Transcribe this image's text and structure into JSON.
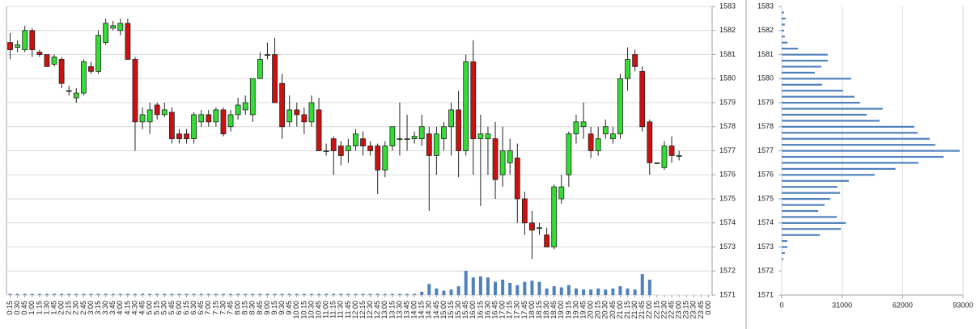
{
  "chart_data": [
    {
      "type": "candlestick",
      "categories": [
        "0:15",
        "0:30",
        "0:45",
        "1:00",
        "1:15",
        "1:30",
        "1:45",
        "2:00",
        "2:15",
        "2:30",
        "2:45",
        "3:00",
        "3:15",
        "3:30",
        "3:45",
        "4:00",
        "4:15",
        "4:30",
        "4:45",
        "5:00",
        "5:15",
        "5:30",
        "5:45",
        "6:00",
        "6:15",
        "6:30",
        "6:45",
        "7:00",
        "7:15",
        "7:30",
        "7:45",
        "8:00",
        "8:15",
        "8:30",
        "8:45",
        "9:00",
        "9:15",
        "9:30",
        "9:45",
        "10:00",
        "10:15",
        "10:30",
        "10:45",
        "11:00",
        "11:15",
        "11:30",
        "11:45",
        "12:00",
        "12:15",
        "12:30",
        "12:45",
        "13:00",
        "13:15",
        "13:30",
        "13:45",
        "14:00",
        "14:15",
        "14:30",
        "14:45",
        "15:00",
        "15:15",
        "15:30",
        "15:45",
        "16:00",
        "16:15",
        "16:30",
        "16:45",
        "17:00",
        "17:15",
        "17:30",
        "17:45",
        "18:00",
        "18:15",
        "18:30",
        "18:45",
        "19:00",
        "19:15",
        "19:30",
        "19:45",
        "20:00",
        "20:15",
        "20:30",
        "20:45",
        "21:00",
        "21:15",
        "21:30",
        "21:45",
        "22:00",
        "22:15",
        "22:30",
        "22:45",
        "23:00",
        "23:15",
        "23:30",
        "23:45",
        "0:00"
      ],
      "open": [
        1581.5,
        1581.3,
        1581.2,
        1582.0,
        1581.1,
        1581.0,
        1580.6,
        1580.8,
        1579.5,
        1579.2,
        1579.4,
        1580.5,
        1580.3,
        1581.5,
        1582.1,
        1582.0,
        1582.3,
        1580.8,
        1578.2,
        1578.2,
        1578.9,
        1578.5,
        1578.6,
        1577.7,
        1577.7,
        1577.5,
        1578.2,
        1578.5,
        1578.2,
        1578.7,
        1578.0,
        1578.5,
        1578.7,
        1578.5,
        1580.0,
        1581.0,
        1581.0,
        1579.8,
        1578.2,
        1578.7,
        1578.5,
        1578.2,
        1578.7,
        1577.0,
        1577.5,
        1577.2,
        1577.0,
        1577.2,
        1577.5,
        1577.2,
        1577.2,
        1576.2,
        1577.2,
        1577.5,
        1577.5,
        1577.5,
        1577.5,
        1577.7,
        1576.8,
        1577.5,
        1578.0,
        1578.7,
        1577.0,
        1580.7,
        1577.5,
        1577.5,
        1577.5,
        1576.0,
        1576.5,
        1576.7,
        1575.0,
        1574.0,
        1573.8,
        1573.5,
        1573.0,
        1575.0,
        1576.0,
        1577.7,
        1578.0,
        1577.7,
        1577.0,
        1577.7,
        1577.5,
        1577.7,
        1580.0,
        1581.0,
        1580.3,
        1578.2,
        1576.5,
        1576.3,
        1577.2,
        1576.8,
        null,
        null,
        null,
        null
      ],
      "high": [
        1581.9,
        1581.6,
        1582.2,
        1582.1,
        1581.2,
        1581.0,
        1581.0,
        1580.9,
        1579.7,
        1579.6,
        1580.8,
        1580.7,
        1582.0,
        1582.5,
        1582.4,
        1582.5,
        1582.5,
        1580.9,
        1578.8,
        1579.0,
        1579.0,
        1579.0,
        1578.8,
        1577.9,
        1577.9,
        1578.6,
        1578.7,
        1578.7,
        1578.8,
        1578.8,
        1578.7,
        1579.2,
        1579.3,
        1580.0,
        1581.1,
        1581.5,
        1581.7,
        1580.2,
        1579.3,
        1579.0,
        1578.8,
        1579.3,
        1579.2,
        1577.3,
        1577.6,
        1577.4,
        1577.5,
        1577.9,
        1577.8,
        1577.4,
        1577.3,
        1577.4,
        1578.0,
        1579.0,
        1578.5,
        1577.8,
        1578.5,
        1578.0,
        1578.0,
        1578.2,
        1579.0,
        1579.5,
        1581.0,
        1581.6,
        1578.5,
        1578.0,
        1578.2,
        1578.0,
        1577.5,
        1577.3,
        1575.3,
        1574.5,
        1574.0,
        1573.8,
        1575.6,
        1576.0,
        1577.8,
        1578.5,
        1579.0,
        1578.0,
        1578.0,
        1578.3,
        1578.0,
        1580.2,
        1581.3,
        1581.2,
        1580.5,
        1578.3,
        1576.5,
        1577.4,
        1577.6,
        1577.0,
        null,
        null,
        null,
        null
      ],
      "low": [
        1580.8,
        1581.1,
        1581.1,
        1580.9,
        1580.9,
        1580.5,
        1580.5,
        1579.6,
        1579.3,
        1579.0,
        1579.3,
        1580.2,
        1580.2,
        1581.4,
        1582.0,
        1581.8,
        1580.8,
        1577.0,
        1577.9,
        1577.7,
        1578.3,
        1578.4,
        1577.3,
        1577.3,
        1577.3,
        1577.3,
        1578.0,
        1578.0,
        1578.0,
        1577.6,
        1577.8,
        1578.3,
        1578.5,
        1578.2,
        1580.0,
        1580.8,
        1579.0,
        1577.5,
        1578.0,
        1578.0,
        1577.7,
        1578.0,
        1577.0,
        1576.8,
        1576.0,
        1576.4,
        1576.5,
        1577.0,
        1576.8,
        1576.8,
        1575.2,
        1575.9,
        1577.0,
        1576.8,
        1577.0,
        1577.3,
        1577.2,
        1574.5,
        1576.0,
        1577.0,
        1576.8,
        1575.9,
        1576.8,
        1576.0,
        1574.7,
        1576.0,
        1575.0,
        1575.5,
        1576.0,
        1574.0,
        1573.5,
        1572.5,
        1573.5,
        1573.0,
        1572.9,
        1574.8,
        1575.5,
        1577.3,
        1577.5,
        1576.7,
        1576.8,
        1577.5,
        1577.3,
        1577.5,
        1579.5,
        1580.3,
        1577.8,
        1576.0,
        1576.5,
        1576.2,
        1576.5,
        1576.6,
        null,
        null,
        null,
        null
      ],
      "close": [
        1581.2,
        1581.4,
        1582.0,
        1581.2,
        1581.0,
        1580.5,
        1580.9,
        1579.8,
        1579.5,
        1579.4,
        1580.7,
        1580.3,
        1581.8,
        1582.3,
        1582.2,
        1582.3,
        1580.8,
        1578.2,
        1578.5,
        1578.7,
        1578.5,
        1578.7,
        1577.5,
        1577.5,
        1577.5,
        1578.5,
        1578.5,
        1578.2,
        1578.7,
        1577.7,
        1578.5,
        1578.9,
        1579.0,
        1580.0,
        1580.8,
        1581.0,
        1579.0,
        1578.0,
        1578.7,
        1578.5,
        1578.2,
        1579.0,
        1577.0,
        1577.0,
        1577.0,
        1576.8,
        1577.2,
        1577.7,
        1577.2,
        1577.0,
        1576.2,
        1577.2,
        1578.0,
        1577.5,
        1577.5,
        1577.6,
        1578.0,
        1576.8,
        1577.7,
        1578.0,
        1578.7,
        1577.0,
        1580.7,
        1577.5,
        1577.7,
        1577.7,
        1575.8,
        1577.0,
        1577.0,
        1575.0,
        1574.0,
        1573.7,
        1573.8,
        1573.0,
        1575.5,
        1575.5,
        1577.7,
        1578.2,
        1578.2,
        1577.0,
        1577.5,
        1578.0,
        1577.7,
        1580.0,
        1580.8,
        1580.5,
        1578.0,
        1576.5,
        1576.5,
        1577.2,
        1576.8,
        1576.8,
        null,
        null,
        null,
        null
      ],
      "volume": {
        "color": "#4f81bd",
        "values": [
          1000,
          1000,
          1000,
          1000,
          1000,
          1000,
          1000,
          1000,
          1000,
          1000,
          1000,
          1000,
          1000,
          1000,
          1000,
          1000,
          1000,
          1000,
          1000,
          1000,
          1000,
          1000,
          1000,
          1000,
          1000,
          1000,
          1000,
          1000,
          1000,
          1000,
          1000,
          1000,
          1000,
          1000,
          1000,
          1000,
          1000,
          1000,
          1000,
          1000,
          1000,
          1000,
          1000,
          1000,
          1000,
          1000,
          1000,
          1000,
          1000,
          1000,
          1000,
          1000,
          1000,
          1000,
          1000,
          1000,
          3000,
          10000,
          6000,
          4000,
          5000,
          8000,
          22000,
          16000,
          17000,
          16000,
          12000,
          14000,
          11000,
          9000,
          12000,
          13000,
          12000,
          6000,
          8000,
          7000,
          9000,
          6000,
          5000,
          5000,
          6000,
          5000,
          6000,
          8000,
          6000,
          5000,
          19000,
          14000,
          0,
          0,
          0,
          0,
          null,
          null,
          null,
          null
        ]
      },
      "up_color": "#33dd33",
      "down_color": "#cc1111",
      "ylim": [
        1571,
        1583
      ],
      "yticks": [
        1571,
        1572,
        1573,
        1574,
        1575,
        1576,
        1577,
        1578,
        1579,
        1580,
        1581,
        1582,
        1583
      ],
      "grid": true
    },
    {
      "type": "barh",
      "y": [
        1582.75,
        1582.5,
        1582.25,
        1582,
        1581.75,
        1581.5,
        1581.25,
        1581,
        1580.75,
        1580.5,
        1580.25,
        1580,
        1579.75,
        1579.5,
        1579.25,
        1579,
        1578.75,
        1578.5,
        1578.25,
        1578,
        1577.75,
        1577.5,
        1577.25,
        1577,
        1576.75,
        1576.5,
        1576.25,
        1576,
        1575.75,
        1575.5,
        1575.25,
        1575,
        1574.75,
        1574.5,
        1574.25,
        1574,
        1573.75,
        1573.5,
        1573.25,
        1573,
        1572.75,
        1572.5
      ],
      "values": [
        1200,
        2000,
        1600,
        1200,
        1600,
        2900,
        8300,
        23600,
        23600,
        20300,
        17000,
        35600,
        20700,
        31500,
        37300,
        40200,
        51800,
        43600,
        50200,
        68000,
        69700,
        75900,
        78800,
        91300,
        83000,
        70100,
        58400,
        47700,
        34400,
        28600,
        29900,
        24900,
        22000,
        18700,
        28200,
        32800,
        30300,
        19500,
        2900,
        2900,
        1600,
        800
      ],
      "color": "#4f81bd",
      "ylim": [
        1571,
        1583
      ],
      "yticks": [
        1571,
        1572,
        1573,
        1574,
        1575,
        1576,
        1577,
        1578,
        1579,
        1580,
        1581,
        1582,
        1583
      ],
      "xlim": [
        0,
        93000
      ],
      "xticks": [
        0,
        31000,
        62000,
        93000
      ],
      "grid": true
    }
  ]
}
